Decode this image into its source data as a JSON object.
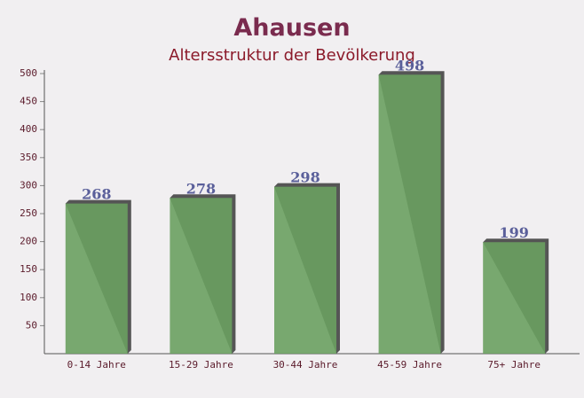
{
  "chart_data": {
    "type": "bar",
    "title": "Ahausen",
    "subtitle": "Altersstruktur der Bevölkerung",
    "categories": [
      "0-14 Jahre",
      "15-29 Jahre",
      "30-44 Jahre",
      "45-59 Jahre",
      "75+ Jahre"
    ],
    "values": [
      268,
      278,
      298,
      498,
      199
    ],
    "color": "#6aa060",
    "ylim": [
      0,
      500
    ],
    "yticks": [
      50,
      100,
      150,
      200,
      250,
      300,
      350,
      400,
      450,
      500
    ]
  }
}
